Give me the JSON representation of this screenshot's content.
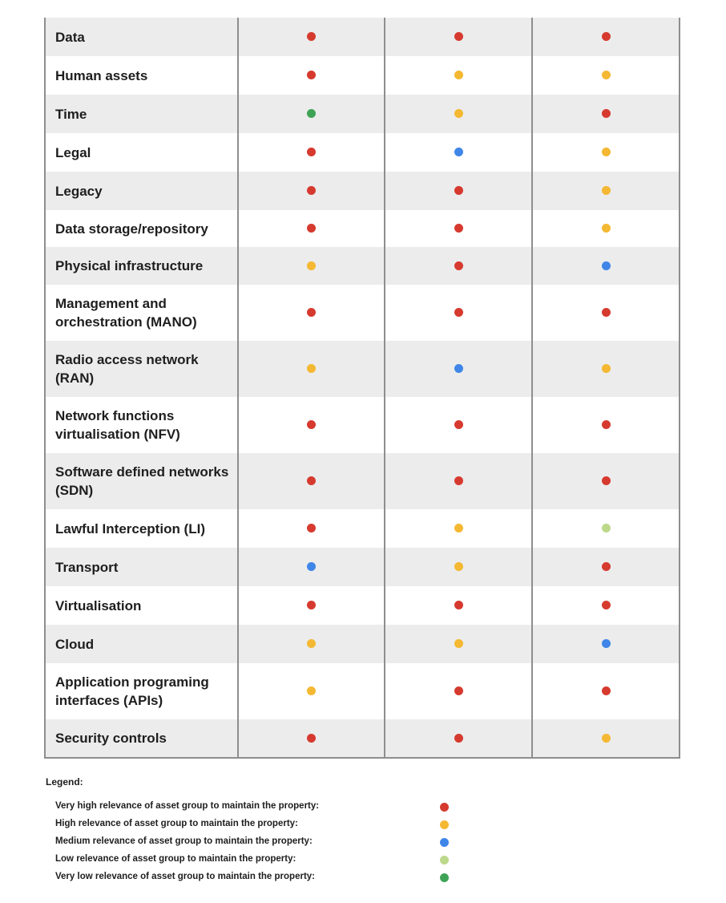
{
  "colors": {
    "very_high": "#d63a2f",
    "high": "#f4b832",
    "medium": "#3f86e8",
    "low": "#bcd88a",
    "very_low": "#3fa356"
  },
  "table": {
    "rows": [
      {
        "label": "Data",
        "levels": [
          "very_high",
          "very_high",
          "very_high"
        ]
      },
      {
        "label": "Human assets",
        "levels": [
          "very_high",
          "high",
          "high"
        ]
      },
      {
        "label": "Time",
        "levels": [
          "very_low",
          "high",
          "very_high"
        ]
      },
      {
        "label": "Legal",
        "levels": [
          "very_high",
          "medium",
          "high"
        ]
      },
      {
        "label": "Legacy",
        "levels": [
          "very_high",
          "very_high",
          "high"
        ]
      },
      {
        "label": "Data storage/repository",
        "levels": [
          "very_high",
          "very_high",
          "high"
        ]
      },
      {
        "label": "Physical infrastructure",
        "levels": [
          "high",
          "very_high",
          "medium"
        ]
      },
      {
        "label": "Management and orchestration (MANO)",
        "levels": [
          "very_high",
          "very_high",
          "very_high"
        ]
      },
      {
        "label": "Radio access network (RAN)",
        "levels": [
          "high",
          "medium",
          "high"
        ]
      },
      {
        "label": "Network functions virtualisation (NFV)",
        "levels": [
          "very_high",
          "very_high",
          "very_high"
        ]
      },
      {
        "label": "Software defined networks (SDN)",
        "levels": [
          "very_high",
          "very_high",
          "very_high"
        ]
      },
      {
        "label": "Lawful Interception (LI)",
        "levels": [
          "very_high",
          "high",
          "low"
        ]
      },
      {
        "label": "Transport",
        "levels": [
          "medium",
          "high",
          "very_high"
        ]
      },
      {
        "label": "Virtualisation",
        "levels": [
          "very_high",
          "very_high",
          "very_high"
        ]
      },
      {
        "label": "Cloud",
        "levels": [
          "high",
          "high",
          "medium"
        ]
      },
      {
        "label": "Application programing interfaces (APIs)",
        "levels": [
          "high",
          "very_high",
          "very_high"
        ]
      },
      {
        "label": "Security controls",
        "levels": [
          "very_high",
          "very_high",
          "high"
        ]
      }
    ]
  },
  "legend": {
    "title": "Legend:",
    "items": [
      {
        "text": "Very high relevance of asset group to maintain the property:",
        "level": "very_high"
      },
      {
        "text": "High relevance of asset group to maintain the property:",
        "level": "high"
      },
      {
        "text": "Medium relevance of asset group to maintain the property:",
        "level": "medium"
      },
      {
        "text": "Low relevance of asset group to maintain the property:",
        "level": "low"
      },
      {
        "text": "Very low relevance of asset group to maintain the property:",
        "level": "very_low"
      }
    ]
  }
}
